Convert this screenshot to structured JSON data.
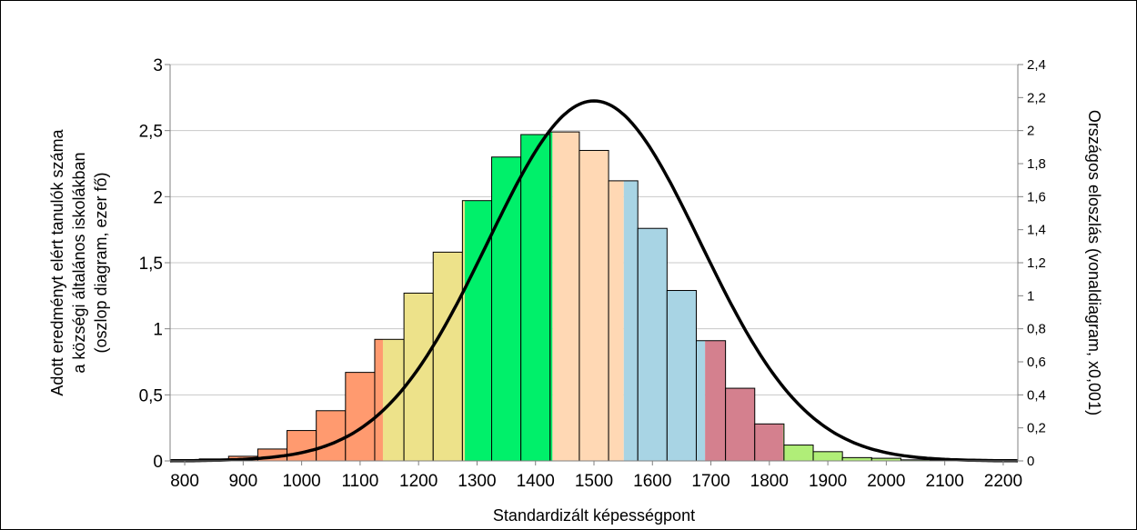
{
  "chart_data": {
    "type": "bar",
    "xlabel": "Standardizált képességpont",
    "ylabel_left_lines": [
      "Adott eredményt elért tanulók száma",
      "a községi általános iskolákban",
      "(oszlop diagram, ezer fő)"
    ],
    "ylabel_right": "Országos eloszlás (vonaldiagram, x0,001)",
    "x_ticks": [
      "800",
      "900",
      "1000",
      "1100",
      "1200",
      "1300",
      "1400",
      "1500",
      "1600",
      "1700",
      "1800",
      "1900",
      "2000",
      "2100",
      "2200"
    ],
    "x_range": [
      775,
      2225
    ],
    "ylim_left": [
      0,
      3
    ],
    "y_ticks_left": [
      "0",
      "0,5",
      "1",
      "1,5",
      "2",
      "2,5",
      "3"
    ],
    "ylim_right": [
      0,
      2.4
    ],
    "y_ticks_right": [
      "0",
      "0,2",
      "0,4",
      "0,6",
      "0,8",
      "1",
      "1,2",
      "1,4",
      "1,6",
      "1,8",
      "2",
      "2,2",
      "2,4"
    ],
    "grid": "horizontal",
    "bar_width": 50,
    "bars": [
      {
        "x": 800,
        "value": 0.008,
        "color": "#ff9a6f"
      },
      {
        "x": 850,
        "value": 0.015,
        "color": "#ff9a6f"
      },
      {
        "x": 900,
        "value": 0.035,
        "color": "#ff9a6f"
      },
      {
        "x": 950,
        "value": 0.09,
        "color": "#ff9a6f"
      },
      {
        "x": 1000,
        "value": 0.23,
        "color": "#ff9a6f"
      },
      {
        "x": 1050,
        "value": 0.38,
        "color": "#ff9a6f"
      },
      {
        "x": 1100,
        "value": 0.67,
        "color": "#ff9a6f"
      },
      {
        "x": 1150,
        "value": 0.92,
        "color": "#ff9a6f",
        "split": 0.28,
        "color2": "#ede28a"
      },
      {
        "x": 1200,
        "value": 1.27,
        "color": "#ede28a"
      },
      {
        "x": 1250,
        "value": 1.58,
        "color": "#ede28a"
      },
      {
        "x": 1300,
        "value": 1.97,
        "color": "#ede28a",
        "split": 0.08,
        "color2": "#00f06a"
      },
      {
        "x": 1350,
        "value": 2.3,
        "color": "#00f06a"
      },
      {
        "x": 1400,
        "value": 2.47,
        "color": "#00f06a"
      },
      {
        "x": 1450,
        "value": 2.49,
        "color": "#00f06a",
        "split": 0.08,
        "color2": "#ffd8b4"
      },
      {
        "x": 1500,
        "value": 2.35,
        "color": "#ffd8b4"
      },
      {
        "x": 1550,
        "value": 2.12,
        "color": "#ffd8b4",
        "split": 0.52,
        "color2": "#a8d4e4"
      },
      {
        "x": 1600,
        "value": 1.76,
        "color": "#a8d4e4"
      },
      {
        "x": 1650,
        "value": 1.29,
        "color": "#a8d4e4"
      },
      {
        "x": 1700,
        "value": 0.91,
        "color": "#a8d4e4",
        "split": 0.3,
        "color2": "#d4808e"
      },
      {
        "x": 1750,
        "value": 0.55,
        "color": "#d4808e"
      },
      {
        "x": 1800,
        "value": 0.28,
        "color": "#d4808e",
        "split": 0.97,
        "color2": "#b0ee78"
      },
      {
        "x": 1850,
        "value": 0.12,
        "color": "#b0ee78"
      },
      {
        "x": 1900,
        "value": 0.07,
        "color": "#b0ee78"
      },
      {
        "x": 1950,
        "value": 0.025,
        "color": "#b0ee78"
      },
      {
        "x": 2000,
        "value": 0.02,
        "color": "#b0ee78"
      },
      {
        "x": 2050,
        "value": 0.008,
        "color": "#b0ee78"
      },
      {
        "x": 2100,
        "value": 0.005,
        "color": "#b0ee78"
      },
      {
        "x": 2150,
        "value": 0.004,
        "color": "#b0ee78"
      }
    ],
    "line_series": {
      "type": "normal",
      "mean": 1500,
      "sd": 182,
      "peak_right_axis": 2.18,
      "x_range": [
        775,
        2225
      ],
      "color": "#000000"
    }
  }
}
